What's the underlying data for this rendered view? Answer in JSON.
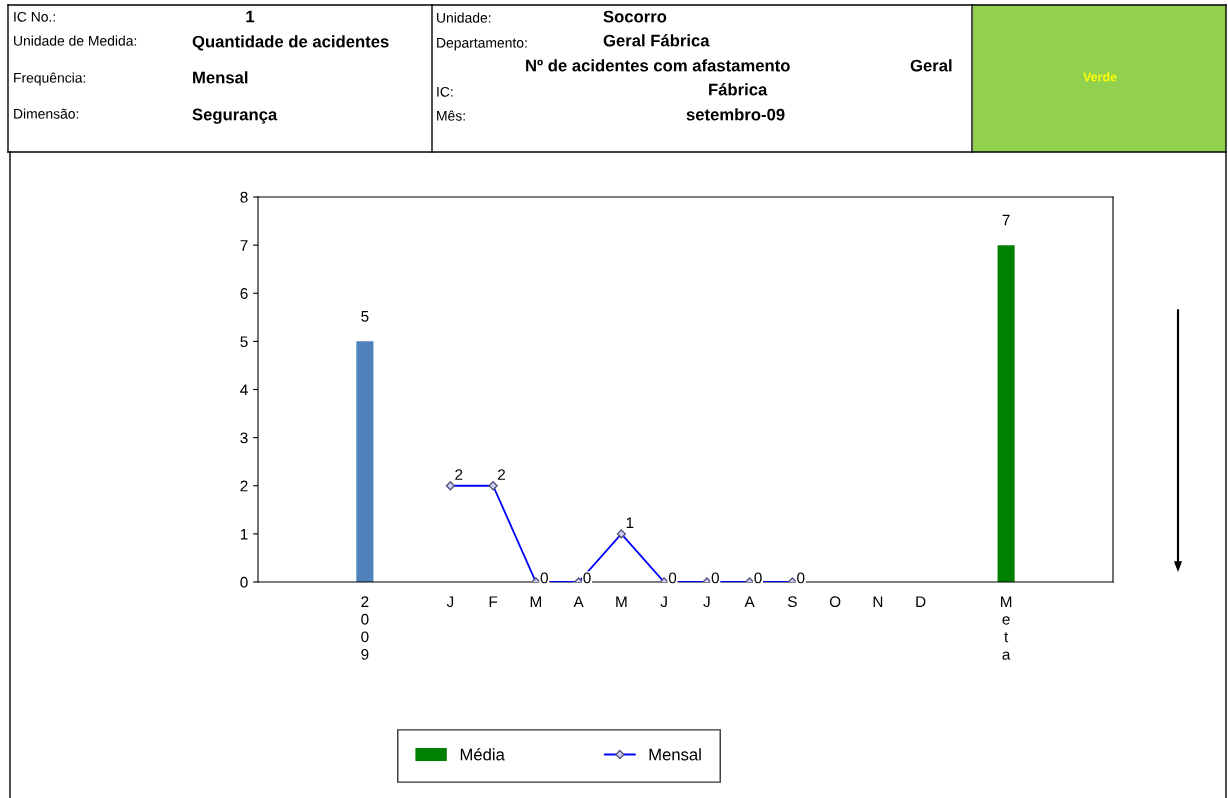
{
  "chart_data": {
    "type": "bar",
    "categories": [
      null,
      null,
      "2009",
      null,
      "J",
      "F",
      "M",
      "A",
      "M",
      "J",
      "J",
      "A",
      "S",
      "O",
      "N",
      "D",
      null,
      "Meta",
      null,
      null
    ],
    "series": [
      {
        "name": "Média",
        "color": "#008000",
        "colors": [
          "#008000",
          "#008000",
          "#4f81bd",
          "#008000",
          "#008000",
          "#008000",
          "#008000",
          "#008000",
          "#008000",
          "#008000",
          "#008000",
          "#008000",
          "#008000",
          "#008000",
          "#008000",
          "#008000",
          "#008000",
          "#008000",
          "#008000",
          "#008000"
        ],
        "values": [
          null,
          null,
          5,
          null,
          null,
          null,
          null,
          null,
          null,
          null,
          null,
          null,
          null,
          null,
          null,
          null,
          null,
          7,
          null,
          null
        ]
      },
      {
        "name": "Mensal",
        "type": "line",
        "color": "#0000ff",
        "marker": "diamond",
        "values": [
          null,
          null,
          null,
          null,
          2,
          2,
          0,
          0,
          1,
          0,
          0,
          0,
          0,
          null,
          null,
          null,
          null,
          null,
          null,
          null
        ]
      }
    ],
    "ylim": [
      0,
      8
    ],
    "yticks": [
      0,
      1,
      2,
      3,
      4,
      5,
      6,
      7,
      8
    ],
    "data_labels": true,
    "grid": false,
    "legend": "bottom",
    "annotations": [
      "IC No.:",
      "1",
      "Unidade de Medida:",
      "Quantidade de acidentes",
      "Frequência:",
      "Mensal",
      "Dimensão:",
      "Segurança",
      "Unidade:",
      "Socorro",
      "Departamento:",
      "Geral Fábrica",
      "Nº de acidentes com afastamento",
      "Geral",
      "IC:",
      "Fábrica",
      "Mês:",
      "setembro-09",
      "Verde"
    ]
  }
}
